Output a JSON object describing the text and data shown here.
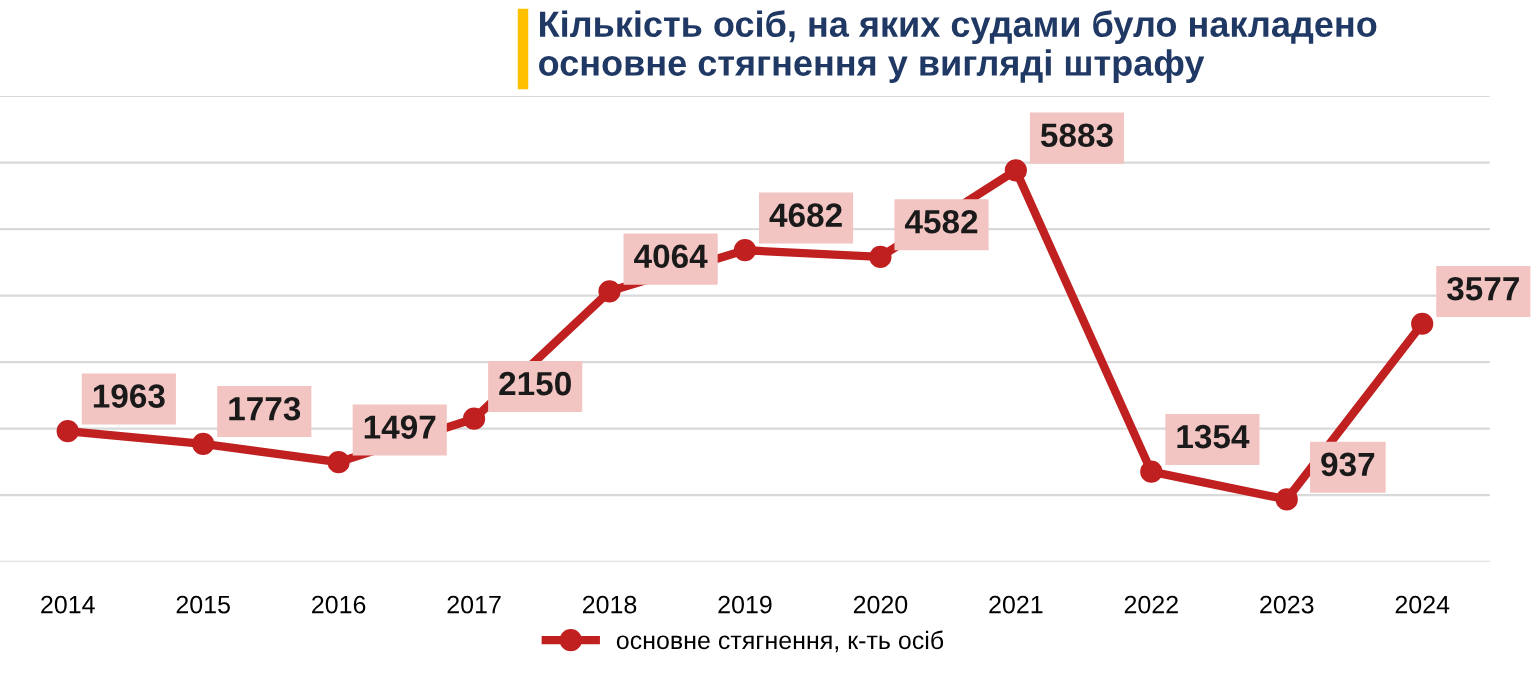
{
  "chart_data": {
    "type": "line",
    "title": "Кількість осіб, на яких судами було накладено\nосновне стягнення у вигляді штрафу",
    "categories": [
      "2014",
      "2015",
      "2016",
      "2017",
      "2018",
      "2019",
      "2020",
      "2021",
      "2022",
      "2023",
      "2024"
    ],
    "series": [
      {
        "name": "основне стягнення, к-ть осіб",
        "color": "#c0201f",
        "values": [
          1963,
          1773,
          1497,
          2150,
          4064,
          4682,
          4582,
          5883,
          1354,
          937,
          3577
        ]
      }
    ],
    "ylim": [
      0,
      7000
    ],
    "yticks": [
      {
        "value": 0,
        "label": null
      },
      {
        "value": 1000,
        "label": null
      },
      {
        "value": 2000,
        "label": null
      },
      {
        "value": 3000,
        "label": null
      },
      {
        "value": 4000,
        "label": null
      },
      {
        "value": 5000,
        "label": null
      },
      {
        "value": 6000,
        "label": null
      },
      {
        "value": 7000,
        "label": null
      }
    ],
    "tick_labels": "x",
    "grid": "y",
    "legend": "bottom",
    "marker": "circle",
    "line_style": "solid",
    "data_labels": true
  }
}
